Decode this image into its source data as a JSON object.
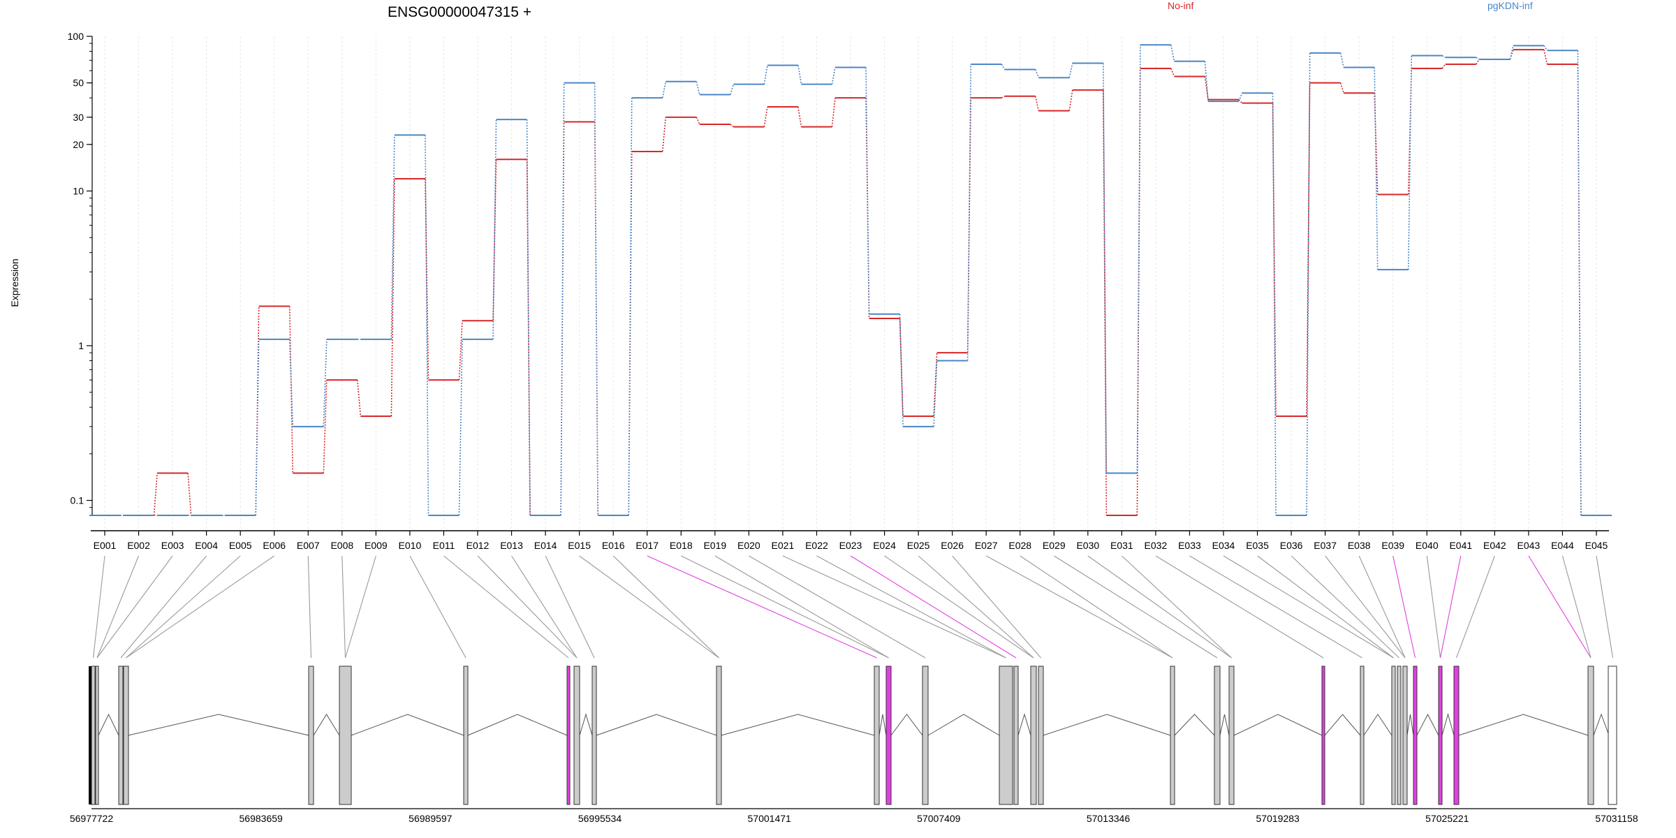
{
  "chart_data": {
    "type": "line",
    "title": "ENSG00000047315 +",
    "ylabel": "Expression",
    "yscale": "log",
    "ylim": [
      0.08,
      100
    ],
    "yticks": [
      0.1,
      1,
      10,
      20,
      30,
      50,
      100
    ],
    "ytick_labels": [
      "0.1",
      "1",
      "10",
      "20",
      "30",
      "50",
      "100"
    ],
    "categories": [
      "E001",
      "E002",
      "E003",
      "E004",
      "E005",
      "E006",
      "E007",
      "E008",
      "E009",
      "E010",
      "E011",
      "E012",
      "E013",
      "E014",
      "E015",
      "E016",
      "E017",
      "E018",
      "E019",
      "E020",
      "E021",
      "E022",
      "E023",
      "E024",
      "E025",
      "E026",
      "E027",
      "E028",
      "E029",
      "E030",
      "E031",
      "E032",
      "E033",
      "E034",
      "E035",
      "E036",
      "E037",
      "E038",
      "E039",
      "E040",
      "E041",
      "E042",
      "E043",
      "E044",
      "E045"
    ],
    "series": [
      {
        "name": "No-inf",
        "color": "#d62728",
        "values": [
          0.08,
          0.08,
          0.15,
          0.08,
          0.08,
          1.8,
          0.15,
          0.6,
          0.35,
          12,
          0.6,
          1.45,
          16,
          0.08,
          28,
          0.08,
          18,
          30,
          27,
          26,
          35,
          26,
          40,
          1.5,
          0.35,
          0.9,
          40,
          41,
          33,
          45,
          0.08,
          62,
          55,
          39,
          37,
          0.35,
          50,
          43,
          9.5,
          62,
          66,
          71,
          82,
          66,
          0.08
        ]
      },
      {
        "name": "pgKDN-inf",
        "color": "#4a86c8",
        "values": [
          0.08,
          0.08,
          0.08,
          0.08,
          0.08,
          1.1,
          0.3,
          1.1,
          1.1,
          23,
          0.08,
          1.1,
          29,
          0.08,
          50,
          0.08,
          40,
          51,
          42,
          49,
          65,
          49,
          63,
          1.6,
          0.3,
          0.8,
          66,
          61,
          54,
          67,
          0.15,
          88,
          69,
          38,
          43,
          0.08,
          78,
          63,
          3.1,
          75,
          73,
          71,
          87,
          81,
          0.08
        ]
      }
    ],
    "genomic_axis": {
      "ticks": [
        "56977722",
        "56983659",
        "56989597",
        "56995534",
        "57001471",
        "57007409",
        "57013346",
        "57019283",
        "57025221",
        "57031158"
      ]
    },
    "highlight_color": "#e040e0"
  }
}
